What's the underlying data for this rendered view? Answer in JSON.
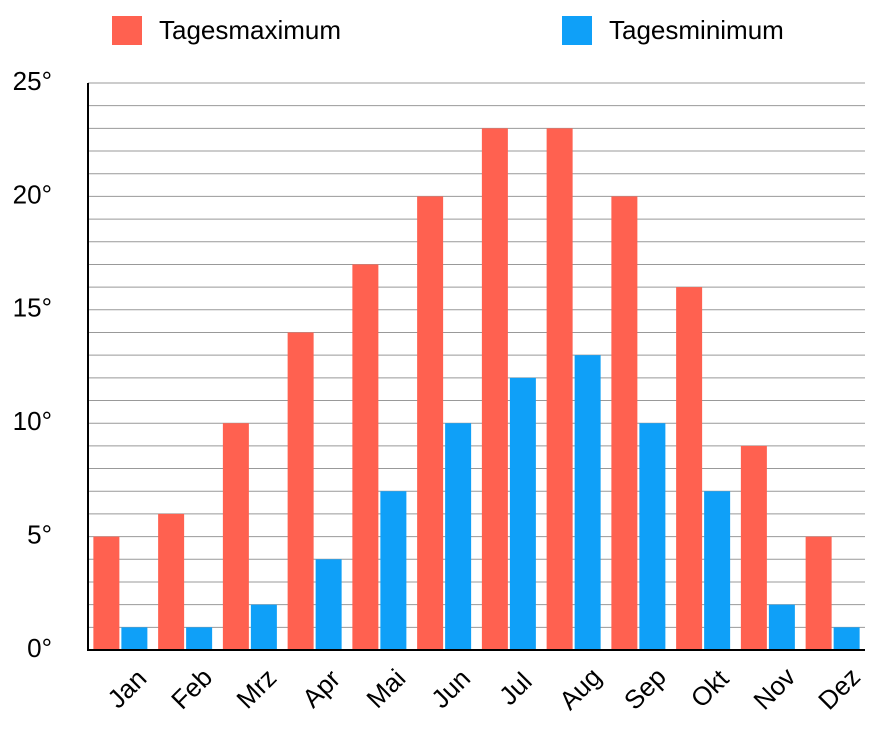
{
  "chart_data": {
    "type": "bar",
    "categories": [
      "Jan",
      "Feb",
      "Mrz",
      "Apr",
      "Mai",
      "Jun",
      "Jul",
      "Aug",
      "Sep",
      "Okt",
      "Nov",
      "Dez"
    ],
    "series": [
      {
        "name": "Tagesmaximum",
        "color": "#ff6150",
        "values": [
          5,
          6,
          10,
          14,
          17,
          20,
          23,
          23,
          20,
          16,
          9,
          5
        ]
      },
      {
        "name": "Tagesminimum",
        "color": "#0fa0f8",
        "values": [
          1,
          1,
          2,
          4,
          7,
          10,
          12,
          13,
          10,
          7,
          2,
          1
        ]
      }
    ],
    "ylim": [
      0,
      25
    ],
    "yticks": [
      {
        "value": 0,
        "label": "0°"
      },
      {
        "value": 5,
        "label": "5°"
      },
      {
        "value": 10,
        "label": "10°"
      },
      {
        "value": 15,
        "label": "15°"
      },
      {
        "value": 20,
        "label": "20°"
      },
      {
        "value": 25,
        "label": "25°"
      }
    ],
    "y_minor_ticks": [
      1,
      2,
      3,
      4,
      6,
      7,
      8,
      9,
      11,
      12,
      13,
      14,
      16,
      17,
      18,
      19,
      21,
      22,
      23,
      24
    ],
    "grid": true,
    "legend": "top"
  }
}
